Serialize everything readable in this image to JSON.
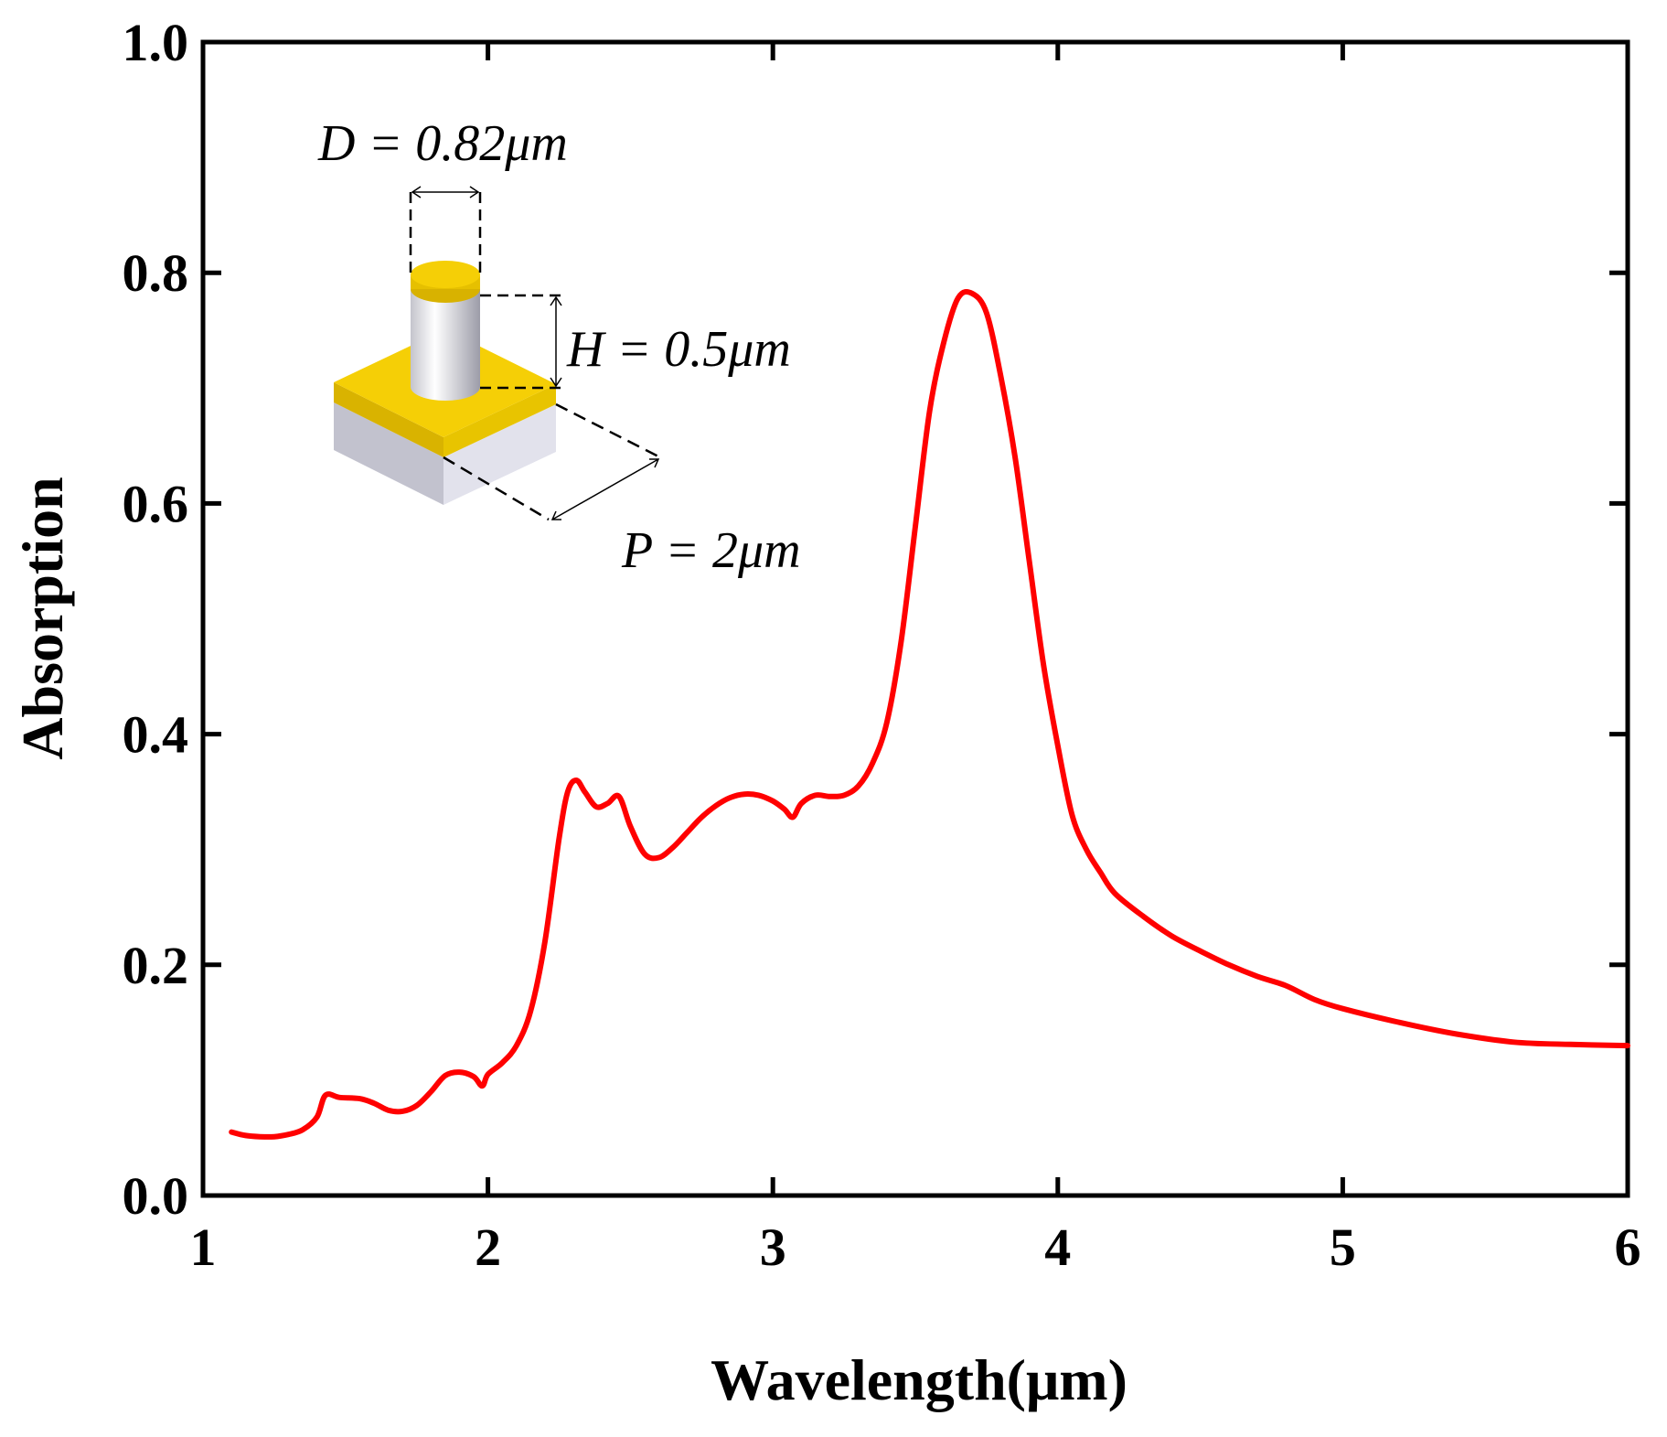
{
  "chart_data": {
    "type": "line",
    "title": "",
    "xlabel": "Wavelength(μm)",
    "ylabel": "Absorption",
    "xlim": [
      1,
      6
    ],
    "ylim": [
      0,
      1.0
    ],
    "x_ticks": [
      "1",
      "2",
      "3",
      "4",
      "5",
      "6"
    ],
    "y_ticks": [
      "0.0",
      "0.2",
      "0.4",
      "0.6",
      "0.8",
      "1.0"
    ],
    "grid": false,
    "series": [
      {
        "name": "Absorption",
        "color": "#ff0000",
        "x": [
          1.1,
          1.15,
          1.2,
          1.25,
          1.3,
          1.35,
          1.4,
          1.43,
          1.48,
          1.55,
          1.6,
          1.65,
          1.7,
          1.75,
          1.8,
          1.85,
          1.9,
          1.95,
          1.98,
          2.0,
          2.05,
          2.1,
          2.15,
          2.2,
          2.25,
          2.28,
          2.31,
          2.34,
          2.38,
          2.42,
          2.46,
          2.5,
          2.55,
          2.6,
          2.65,
          2.7,
          2.75,
          2.8,
          2.85,
          2.9,
          2.95,
          3.0,
          3.04,
          3.07,
          3.1,
          3.15,
          3.2,
          3.25,
          3.3,
          3.35,
          3.4,
          3.45,
          3.5,
          3.55,
          3.6,
          3.65,
          3.7,
          3.75,
          3.8,
          3.85,
          3.9,
          3.95,
          4.0,
          4.05,
          4.1,
          4.15,
          4.2,
          4.3,
          4.4,
          4.5,
          4.6,
          4.7,
          4.8,
          4.9,
          5.0,
          5.2,
          5.4,
          5.6,
          5.8,
          6.0
        ],
        "values": [
          0.055,
          0.052,
          0.051,
          0.051,
          0.053,
          0.057,
          0.068,
          0.087,
          0.085,
          0.084,
          0.08,
          0.074,
          0.073,
          0.078,
          0.09,
          0.104,
          0.107,
          0.103,
          0.095,
          0.105,
          0.115,
          0.13,
          0.16,
          0.22,
          0.31,
          0.35,
          0.36,
          0.35,
          0.337,
          0.34,
          0.346,
          0.32,
          0.296,
          0.293,
          0.302,
          0.315,
          0.328,
          0.338,
          0.345,
          0.348,
          0.347,
          0.342,
          0.335,
          0.328,
          0.34,
          0.347,
          0.346,
          0.347,
          0.355,
          0.375,
          0.41,
          0.48,
          0.58,
          0.68,
          0.74,
          0.778,
          0.782,
          0.765,
          0.71,
          0.64,
          0.55,
          0.46,
          0.39,
          0.33,
          0.3,
          0.28,
          0.262,
          0.242,
          0.225,
          0.212,
          0.2,
          0.19,
          0.182,
          0.17,
          0.162,
          0.15,
          0.14,
          0.133,
          0.131,
          0.13
        ]
      }
    ],
    "inset": {
      "diameter_label": "D = 0.82μm",
      "height_label": "H = 0.5μm",
      "period_label": "P = 2μm",
      "colors": {
        "gold": "#f5cf06",
        "gold_dark": "#d8b200",
        "substrate_top": "#d8d8e4",
        "substrate_side": "#b4b4c2",
        "pillar_light": "#ffffff",
        "pillar_dark": "#a8a8b4"
      }
    }
  }
}
